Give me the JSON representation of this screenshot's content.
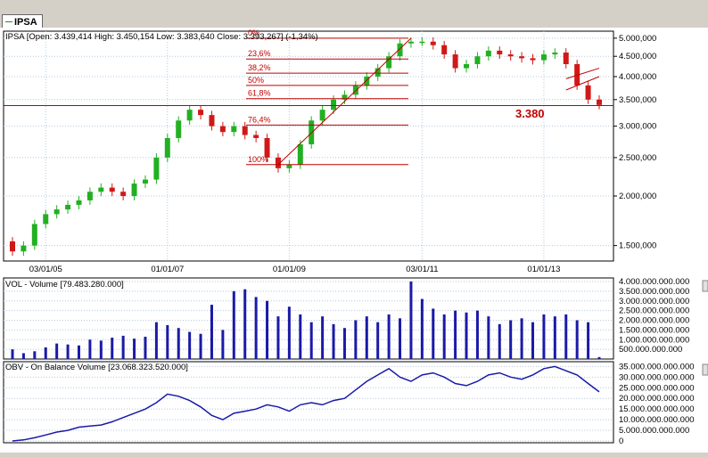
{
  "tab": {
    "label": "IPSA"
  },
  "colors": {
    "up": "#22b022",
    "down": "#d01818",
    "line": "#c00000",
    "vol": "#1a1aa8",
    "obv": "#1a1aa8",
    "grid": "#b4c8dc"
  },
  "price_panel": {
    "header": "IPSA [Open: 3.439,414  High: 3.450,154  Low: 3.383,640  Close: 3.393,267] (-1,34%)",
    "y_ticks": [
      "5.000,000",
      "4.500,000",
      "4.000,000",
      "3.500,000",
      "3.000,000",
      "2.500,000",
      "2.000,000",
      "1.500,000"
    ],
    "x_ticks": [
      "03/01/05",
      "01/01/07",
      "01/01/09",
      "03/01/11",
      "01/01/13"
    ],
    "fib_labels": [
      "0%",
      "23,6%",
      "38,2%",
      "50%",
      "61,8%",
      "76,4%",
      "100%"
    ],
    "annotation": "3.380"
  },
  "vol_panel": {
    "header": "VOL - Volume [79.483.280.000]",
    "y_ticks": [
      "4.000.000.000.000",
      "3.500.000.000.000",
      "3.000.000.000.000",
      "2.500.000.000.000",
      "2.000.000.000.000",
      "1.500.000.000.000",
      "1.000.000.000.000",
      "500.000.000.000"
    ]
  },
  "obv_panel": {
    "header": "OBV - On Balance Volume [23.068.323.520.000]",
    "y_ticks": [
      "35.000.000.000.000",
      "30.000.000.000.000",
      "25.000.000.000.000",
      "20.000.000.000.000",
      "15.000.000.000.000",
      "10.000.000.000.000",
      "5.000.000.000.000",
      "0"
    ]
  },
  "chart_data": [
    {
      "type": "candlestick",
      "title": "IPSA",
      "x_dates": [
        "2004-11",
        "2005-01",
        "2005-03",
        "2005-05",
        "2005-07",
        "2005-09",
        "2005-11",
        "2006-01",
        "2006-03",
        "2006-05",
        "2006-07",
        "2006-09",
        "2006-11",
        "2007-01",
        "2007-03",
        "2007-05",
        "2007-07",
        "2007-09",
        "2007-11",
        "2008-01",
        "2008-03",
        "2008-05",
        "2008-07",
        "2008-09",
        "2008-11",
        "2009-01",
        "2009-03",
        "2009-05",
        "2009-07",
        "2009-09",
        "2009-11",
        "2010-01",
        "2010-03",
        "2010-05",
        "2010-07",
        "2010-09",
        "2010-11",
        "2011-01",
        "2011-03",
        "2011-05",
        "2011-07",
        "2011-09",
        "2011-11",
        "2012-01",
        "2012-03",
        "2012-05",
        "2012-07",
        "2012-09",
        "2012-11",
        "2013-01",
        "2013-03",
        "2013-05",
        "2013-07",
        "2013-09"
      ],
      "close": [
        1450,
        1500,
        1700,
        1800,
        1850,
        1900,
        1950,
        2050,
        2100,
        2050,
        2000,
        2150,
        2200,
        2500,
        2800,
        3100,
        3300,
        3200,
        3000,
        2900,
        3000,
        2850,
        2800,
        2500,
        2350,
        2400,
        2700,
        3100,
        3300,
        3500,
        3600,
        3800,
        4000,
        4200,
        4500,
        4850,
        4900,
        4900,
        4800,
        4550,
        4200,
        4300,
        4500,
        4650,
        4550,
        4500,
        4450,
        4400,
        4550,
        4600,
        4300,
        3800,
        3500,
        3393
      ],
      "y_scale": "log",
      "ylim": [
        1400,
        5100
      ],
      "fibonacci_levels": {
        "0%": 5000,
        "23,6%": 4430,
        "38,2%": 4080,
        "50%": 3800,
        "61,8%": 3520,
        "76,4%": 3020,
        "100%": 2400
      },
      "horizontal_line": 3380
    },
    {
      "type": "bar",
      "title": "VOL - Volume",
      "values": [
        500,
        300,
        400,
        600,
        800,
        750,
        700,
        1000,
        950,
        1100,
        1200,
        1050,
        1150,
        1900,
        1750,
        1600,
        1400,
        1300,
        2800,
        1500,
        3500,
        3600,
        3200,
        3000,
        2200,
        2700,
        2300,
        1900,
        2200,
        1800,
        1600,
        2000,
        2200,
        1900,
        2300,
        2100,
        4000,
        3100,
        2600,
        2300,
        2500,
        2400,
        2500,
        2200,
        1800,
        2000,
        2100,
        1900,
        2300,
        2200,
        2300,
        2000,
        1900,
        100
      ],
      "ylim": [
        0,
        4000000000000
      ]
    },
    {
      "type": "line",
      "title": "OBV - On Balance Volume",
      "values": [
        0,
        500,
        1500,
        2800,
        4200,
        5000,
        6500,
        7000,
        7500,
        9000,
        11000,
        13000,
        15000,
        18000,
        22000,
        21000,
        19000,
        16000,
        12000,
        10000,
        13000,
        14000,
        15000,
        17000,
        16000,
        14000,
        17000,
        18000,
        17000,
        19000,
        20000,
        24000,
        28000,
        31000,
        34000,
        30000,
        28000,
        31000,
        32000,
        30000,
        27000,
        26000,
        28000,
        31000,
        32000,
        30000,
        29000,
        31000,
        34000,
        35000,
        33000,
        31000,
        27000,
        23068
      ],
      "ylim": [
        0,
        36000000000000
      ]
    }
  ]
}
